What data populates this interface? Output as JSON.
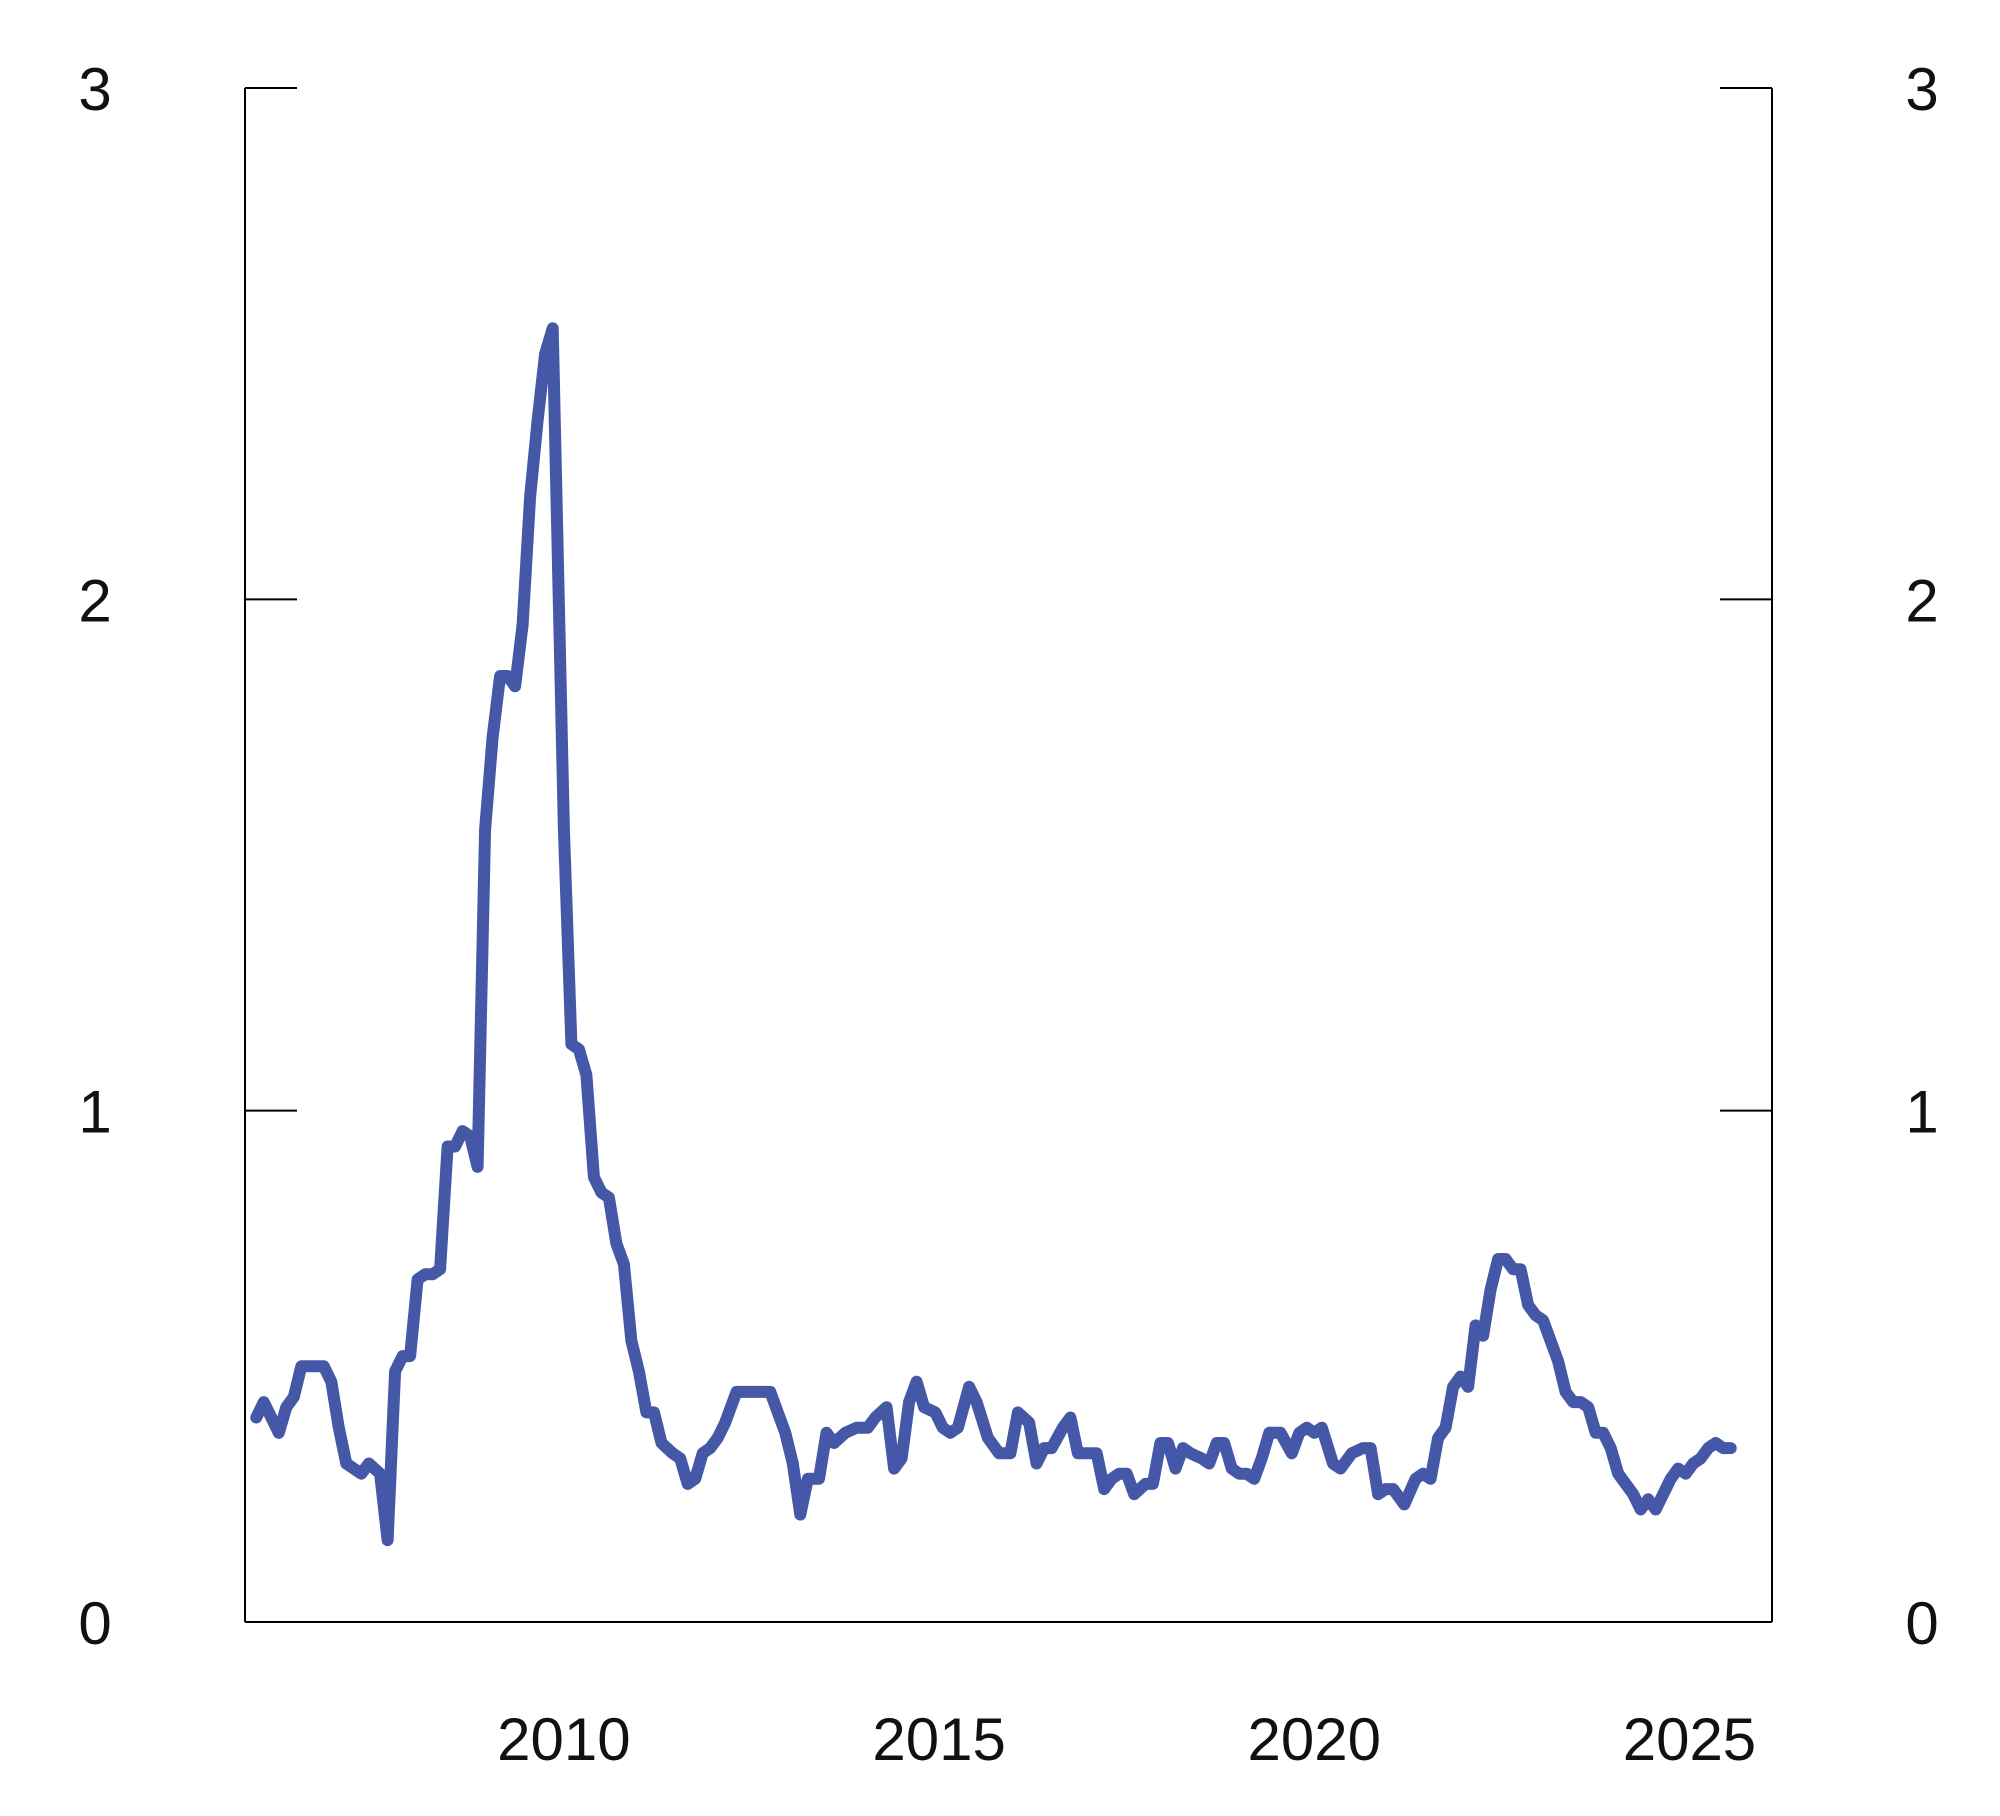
{
  "chart_data": {
    "type": "line",
    "title": "",
    "xlabel": "",
    "ylabel": "",
    "xlim": [
      2005.75,
      2026.1
    ],
    "ylim": [
      0,
      3
    ],
    "x_ticks": [
      "2010",
      "2015",
      "2020",
      "2025"
    ],
    "y_ticks": [
      "0",
      "1",
      "2",
      "3"
    ],
    "y_ticks_right": [
      "0",
      "1",
      "2",
      "3"
    ],
    "grid": false,
    "legend": "none",
    "series": [
      {
        "color": "#4558a8",
        "points": [
          [
            2005.9,
            0.4
          ],
          [
            2006.0,
            0.43
          ],
          [
            2006.1,
            0.4
          ],
          [
            2006.2,
            0.37
          ],
          [
            2006.3,
            0.42
          ],
          [
            2006.4,
            0.44
          ],
          [
            2006.5,
            0.5
          ],
          [
            2006.6,
            0.5
          ],
          [
            2006.8,
            0.5
          ],
          [
            2006.9,
            0.47
          ],
          [
            2007.0,
            0.38
          ],
          [
            2007.1,
            0.31
          ],
          [
            2007.3,
            0.29
          ],
          [
            2007.4,
            0.31
          ],
          [
            2007.55,
            0.29
          ],
          [
            2007.65,
            0.16
          ],
          [
            2007.75,
            0.49
          ],
          [
            2007.85,
            0.52
          ],
          [
            2007.95,
            0.52
          ],
          [
            2008.05,
            0.67
          ],
          [
            2008.15,
            0.68
          ],
          [
            2008.25,
            0.68
          ],
          [
            2008.35,
            0.69
          ],
          [
            2008.45,
            0.93
          ],
          [
            2008.55,
            0.93
          ],
          [
            2008.65,
            0.96
          ],
          [
            2008.75,
            0.95
          ],
          [
            2008.85,
            0.89
          ],
          [
            2008.95,
            1.55
          ],
          [
            2009.05,
            1.73
          ],
          [
            2009.15,
            1.85
          ],
          [
            2009.25,
            1.85
          ],
          [
            2009.35,
            1.83
          ],
          [
            2009.45,
            1.95
          ],
          [
            2009.55,
            2.2
          ],
          [
            2009.65,
            2.35
          ],
          [
            2009.75,
            2.48
          ],
          [
            2009.85,
            2.53
          ],
          [
            2010.0,
            1.55
          ],
          [
            2010.1,
            1.13
          ],
          [
            2010.2,
            1.12
          ],
          [
            2010.3,
            1.07
          ],
          [
            2010.4,
            0.87
          ],
          [
            2010.5,
            0.84
          ],
          [
            2010.6,
            0.83
          ],
          [
            2010.7,
            0.74
          ],
          [
            2010.8,
            0.7
          ],
          [
            2010.9,
            0.55
          ],
          [
            2011.0,
            0.49
          ],
          [
            2011.1,
            0.41
          ],
          [
            2011.2,
            0.41
          ],
          [
            2011.3,
            0.35
          ],
          [
            2011.45,
            0.33
          ],
          [
            2011.55,
            0.32
          ],
          [
            2011.65,
            0.27
          ],
          [
            2011.75,
            0.28
          ],
          [
            2011.85,
            0.33
          ],
          [
            2011.95,
            0.34
          ],
          [
            2012.05,
            0.36
          ],
          [
            2012.15,
            0.39
          ],
          [
            2012.3,
            0.45
          ],
          [
            2012.45,
            0.45
          ],
          [
            2012.6,
            0.45
          ],
          [
            2012.75,
            0.45
          ],
          [
            2012.85,
            0.41
          ],
          [
            2012.95,
            0.37
          ],
          [
            2013.05,
            0.31
          ],
          [
            2013.15,
            0.21
          ],
          [
            2013.25,
            0.28
          ],
          [
            2013.4,
            0.28
          ],
          [
            2013.5,
            0.37
          ],
          [
            2013.6,
            0.35
          ],
          [
            2013.75,
            0.37
          ],
          [
            2013.9,
            0.38
          ],
          [
            2014.05,
            0.38
          ],
          [
            2014.15,
            0.4
          ],
          [
            2014.3,
            0.42
          ],
          [
            2014.4,
            0.3
          ],
          [
            2014.5,
            0.32
          ],
          [
            2014.6,
            0.43
          ],
          [
            2014.7,
            0.47
          ],
          [
            2014.8,
            0.42
          ],
          [
            2014.95,
            0.41
          ],
          [
            2015.05,
            0.38
          ],
          [
            2015.15,
            0.37
          ],
          [
            2015.25,
            0.38
          ],
          [
            2015.4,
            0.46
          ],
          [
            2015.5,
            0.43
          ],
          [
            2015.65,
            0.36
          ],
          [
            2015.8,
            0.33
          ],
          [
            2015.95,
            0.33
          ],
          [
            2016.05,
            0.41
          ],
          [
            2016.2,
            0.39
          ],
          [
            2016.3,
            0.31
          ],
          [
            2016.4,
            0.34
          ],
          [
            2016.5,
            0.34
          ],
          [
            2016.65,
            0.38
          ],
          [
            2016.75,
            0.4
          ],
          [
            2016.85,
            0.33
          ],
          [
            2016.95,
            0.33
          ],
          [
            2017.1,
            0.33
          ],
          [
            2017.2,
            0.26
          ],
          [
            2017.3,
            0.28
          ],
          [
            2017.4,
            0.29
          ],
          [
            2017.5,
            0.29
          ],
          [
            2017.6,
            0.25
          ],
          [
            2017.75,
            0.27
          ],
          [
            2017.85,
            0.27
          ],
          [
            2017.95,
            0.35
          ],
          [
            2018.05,
            0.35
          ],
          [
            2018.15,
            0.3
          ],
          [
            2018.25,
            0.34
          ],
          [
            2018.35,
            0.33
          ],
          [
            2018.5,
            0.32
          ],
          [
            2018.6,
            0.31
          ],
          [
            2018.7,
            0.35
          ],
          [
            2018.8,
            0.35
          ],
          [
            2018.9,
            0.3
          ],
          [
            2019.0,
            0.29
          ],
          [
            2019.1,
            0.29
          ],
          [
            2019.2,
            0.28
          ],
          [
            2019.3,
            0.32
          ],
          [
            2019.4,
            0.37
          ],
          [
            2019.55,
            0.37
          ],
          [
            2019.7,
            0.33
          ],
          [
            2019.8,
            0.37
          ],
          [
            2019.9,
            0.38
          ],
          [
            2020.0,
            0.37
          ],
          [
            2020.1,
            0.38
          ],
          [
            2020.25,
            0.31
          ],
          [
            2020.35,
            0.3
          ],
          [
            2020.5,
            0.33
          ],
          [
            2020.65,
            0.34
          ],
          [
            2020.75,
            0.34
          ],
          [
            2020.85,
            0.25
          ],
          [
            2020.95,
            0.26
          ],
          [
            2021.05,
            0.26
          ],
          [
            2021.2,
            0.23
          ],
          [
            2021.35,
            0.28
          ],
          [
            2021.45,
            0.29
          ],
          [
            2021.55,
            0.28
          ],
          [
            2021.65,
            0.36
          ],
          [
            2021.75,
            0.38
          ],
          [
            2021.85,
            0.46
          ],
          [
            2021.95,
            0.48
          ],
          [
            2022.05,
            0.46
          ],
          [
            2022.15,
            0.58
          ],
          [
            2022.25,
            0.56
          ],
          [
            2022.35,
            0.65
          ],
          [
            2022.45,
            0.71
          ],
          [
            2022.55,
            0.71
          ],
          [
            2022.65,
            0.69
          ],
          [
            2022.75,
            0.69
          ],
          [
            2022.85,
            0.62
          ],
          [
            2022.95,
            0.6
          ],
          [
            2023.05,
            0.59
          ],
          [
            2023.15,
            0.55
          ],
          [
            2023.25,
            0.51
          ],
          [
            2023.35,
            0.45
          ],
          [
            2023.45,
            0.43
          ],
          [
            2023.55,
            0.43
          ],
          [
            2023.65,
            0.42
          ],
          [
            2023.75,
            0.37
          ],
          [
            2023.85,
            0.37
          ],
          [
            2023.95,
            0.34
          ],
          [
            2024.05,
            0.29
          ],
          [
            2024.15,
            0.27
          ],
          [
            2024.25,
            0.25
          ],
          [
            2024.35,
            0.22
          ],
          [
            2024.45,
            0.24
          ],
          [
            2024.55,
            0.22
          ],
          [
            2024.65,
            0.25
          ],
          [
            2024.75,
            0.28
          ],
          [
            2024.85,
            0.3
          ],
          [
            2024.95,
            0.29
          ],
          [
            2025.05,
            0.31
          ],
          [
            2025.15,
            0.32
          ],
          [
            2025.25,
            0.34
          ],
          [
            2025.35,
            0.35
          ],
          [
            2025.45,
            0.34
          ],
          [
            2025.55,
            0.34
          ]
        ]
      }
    ]
  }
}
